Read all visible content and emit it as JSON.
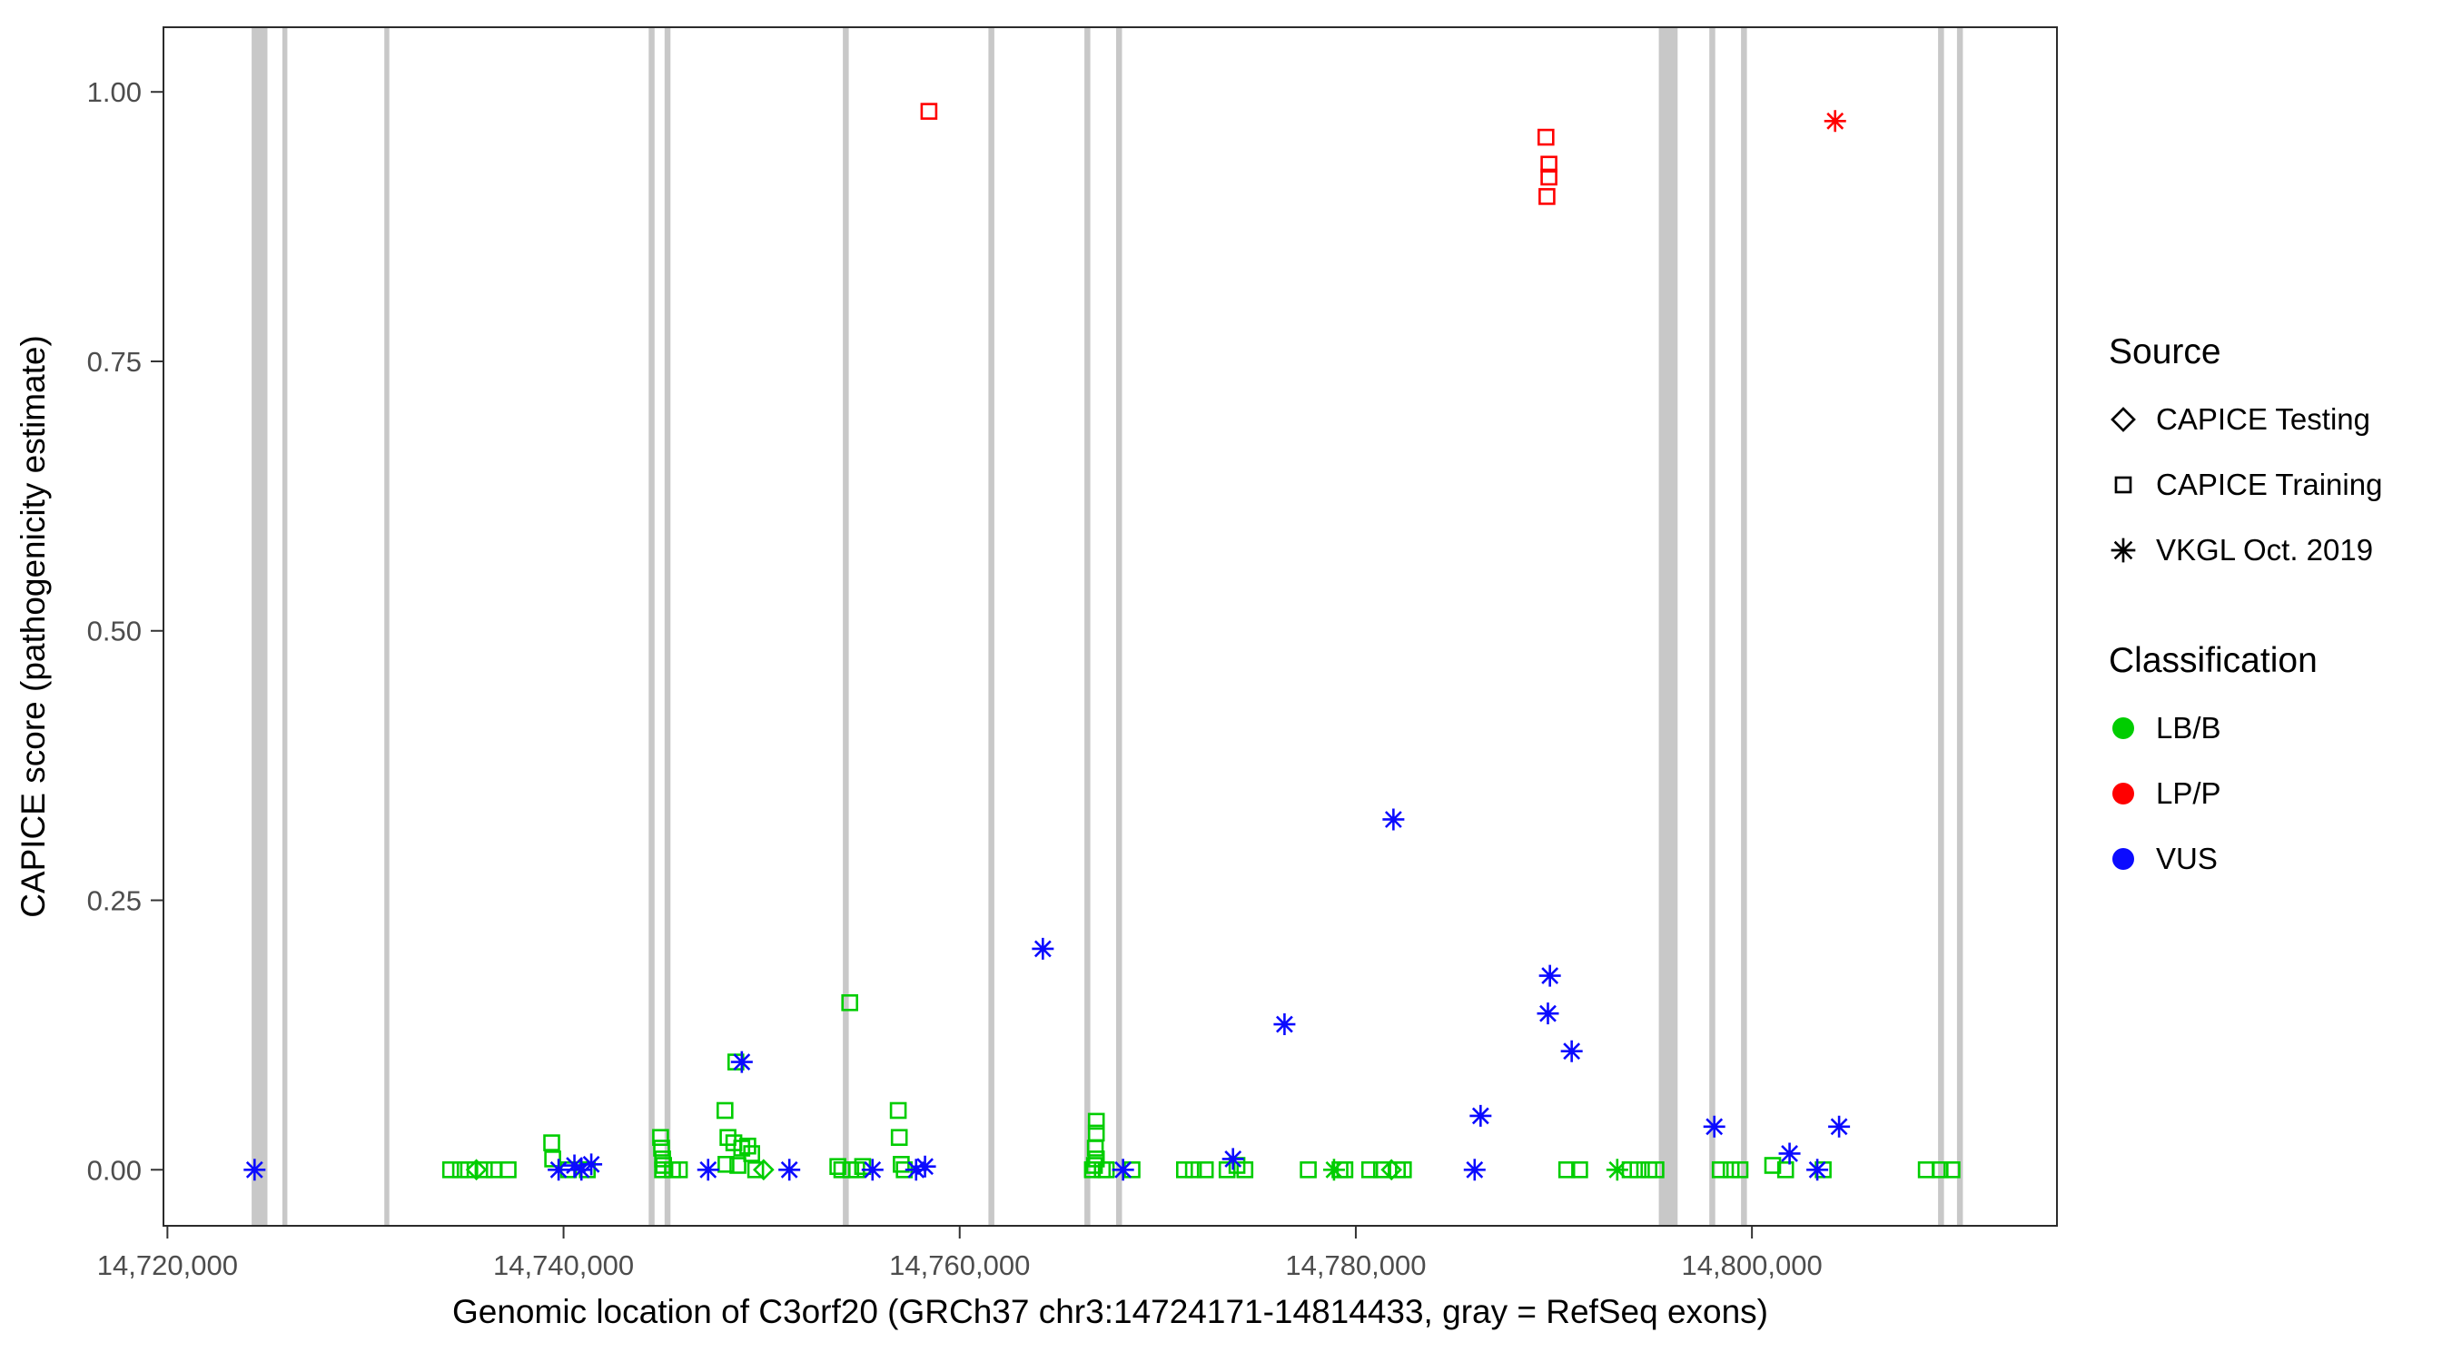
{
  "legend": {
    "source": {
      "title": "Source",
      "items": [
        {
          "label": "CAPICE Testing",
          "shape": "diamond"
        },
        {
          "label": "CAPICE Training",
          "shape": "square"
        },
        {
          "label": "VKGL Oct. 2019",
          "shape": "asterisk"
        }
      ]
    },
    "classification": {
      "title": "Classification",
      "items": [
        {
          "label": "LB/B",
          "color": "#00CD00"
        },
        {
          "label": "LP/P",
          "color": "#FF0000"
        },
        {
          "label": "VUS",
          "color": "#0B0BFF"
        }
      ]
    }
  },
  "chart_data": {
    "type": "scatter",
    "title": "",
    "xlabel": "Genomic location of C3orf20 (GRCh37 chr3:14724171-14814433, gray = RefSeq exons)",
    "ylabel": "CAPICE score (pathogenicity estimate)",
    "xlim": [
      14719800,
      14815400
    ],
    "ylim": [
      -0.052,
      1.06
    ],
    "grid": false,
    "legend_position": "right",
    "x_ticks": [
      {
        "value": 14720000,
        "label": "14,720,000"
      },
      {
        "value": 14740000,
        "label": "14,740,000"
      },
      {
        "value": 14760000,
        "label": "14,760,000"
      },
      {
        "value": 14780000,
        "label": "14,780,000"
      },
      {
        "value": 14800000,
        "label": "14,800,000"
      }
    ],
    "y_ticks": [
      {
        "value": 0.0,
        "label": "0.00"
      },
      {
        "value": 0.25,
        "label": "0.25"
      },
      {
        "value": 0.5,
        "label": "0.50"
      },
      {
        "value": 0.75,
        "label": "0.75"
      },
      {
        "value": 1.0,
        "label": "1.00"
      }
    ],
    "colors": {
      "LB/B": "#00CD00",
      "LP/P": "#FF0000",
      "VUS": "#0B0BFF",
      "exon": "#C8C8C8",
      "axis": "#333333",
      "tick_text": "#4d4d4d"
    },
    "exons": [
      [
        14724250,
        14725050
      ],
      [
        14725800,
        14726050
      ],
      [
        14730950,
        14731200
      ],
      [
        14744300,
        14744600
      ],
      [
        14745100,
        14745400
      ],
      [
        14754100,
        14754400
      ],
      [
        14761450,
        14761750
      ],
      [
        14766300,
        14766600
      ],
      [
        14767900,
        14768200
      ],
      [
        14795300,
        14796250
      ],
      [
        14797850,
        14798150
      ],
      [
        14799450,
        14799750
      ],
      [
        14809400,
        14809700
      ],
      [
        14810350,
        14810650
      ]
    ],
    "points_columns": [
      "position",
      "score",
      "shape",
      "classification"
    ],
    "points": [
      [
        14734300,
        0.0,
        "square",
        "LB/B"
      ],
      [
        14734800,
        0.0,
        "square",
        "LB/B"
      ],
      [
        14735200,
        0.0,
        "square",
        "LB/B"
      ],
      [
        14735600,
        0.0,
        "diamond",
        "LB/B"
      ],
      [
        14736000,
        0.0,
        "square",
        "LB/B"
      ],
      [
        14736500,
        0.0,
        "square",
        "LB/B"
      ],
      [
        14737200,
        0.0,
        "square",
        "LB/B"
      ],
      [
        14739400,
        0.025,
        "square",
        "LB/B"
      ],
      [
        14739450,
        0.01,
        "square",
        "LB/B"
      ],
      [
        14740250,
        0.0,
        "square",
        "LB/B"
      ],
      [
        14741200,
        0.0,
        "square",
        "LB/B"
      ],
      [
        14744900,
        0.03,
        "square",
        "LB/B"
      ],
      [
        14744950,
        0.02,
        "square",
        "LB/B"
      ],
      [
        14745000,
        0.01,
        "square",
        "LB/B"
      ],
      [
        14745050,
        0.004,
        "square",
        "LB/B"
      ],
      [
        14745000,
        0.0,
        "square",
        "LB/B"
      ],
      [
        14745500,
        0.0,
        "square",
        "LB/B"
      ],
      [
        14745850,
        0.0,
        "square",
        "LB/B"
      ],
      [
        14748150,
        0.055,
        "square",
        "LB/B"
      ],
      [
        14748700,
        0.1,
        "square",
        "LB/B"
      ],
      [
        14748300,
        0.03,
        "square",
        "LB/B"
      ],
      [
        14748600,
        0.025,
        "square",
        "LB/B"
      ],
      [
        14749000,
        0.02,
        "square",
        "LB/B"
      ],
      [
        14749300,
        0.022,
        "square",
        "LB/B"
      ],
      [
        14749500,
        0.015,
        "square",
        "LB/B"
      ],
      [
        14748200,
        0.005,
        "square",
        "LB/B"
      ],
      [
        14748800,
        0.004,
        "square",
        "LB/B"
      ],
      [
        14749700,
        0.0,
        "square",
        "LB/B"
      ],
      [
        14750100,
        0.0,
        "diamond",
        "LB/B"
      ],
      [
        14754450,
        0.155,
        "square",
        "LB/B"
      ],
      [
        14753850,
        0.003,
        "square",
        "LB/B"
      ],
      [
        14754050,
        0.0,
        "square",
        "LB/B"
      ],
      [
        14754500,
        0.0,
        "square",
        "LB/B"
      ],
      [
        14754800,
        0.0,
        "square",
        "LB/B"
      ],
      [
        14755100,
        0.003,
        "square",
        "LB/B"
      ],
      [
        14756900,
        0.055,
        "square",
        "LB/B"
      ],
      [
        14756950,
        0.03,
        "square",
        "LB/B"
      ],
      [
        14757050,
        0.005,
        "square",
        "LB/B"
      ],
      [
        14757200,
        0.0,
        "square",
        "LB/B"
      ],
      [
        14766900,
        0.045,
        "square",
        "LB/B"
      ],
      [
        14766900,
        0.034,
        "square",
        "LB/B"
      ],
      [
        14766850,
        0.02,
        "square",
        "LB/B"
      ],
      [
        14766900,
        0.01,
        "square",
        "LB/B"
      ],
      [
        14766800,
        0.004,
        "square",
        "LB/B"
      ],
      [
        14766700,
        0.0,
        "square",
        "LB/B"
      ],
      [
        14767200,
        0.0,
        "square",
        "LB/B"
      ],
      [
        14767400,
        0.0,
        "square",
        "LB/B"
      ],
      [
        14768700,
        0.0,
        "square",
        "LB/B"
      ],
      [
        14771350,
        0.0,
        "square",
        "LB/B"
      ],
      [
        14771800,
        0.0,
        "square",
        "LB/B"
      ],
      [
        14772400,
        0.0,
        "square",
        "LB/B"
      ],
      [
        14773500,
        0.0,
        "square",
        "LB/B"
      ],
      [
        14774000,
        0.004,
        "square",
        "LB/B"
      ],
      [
        14774400,
        0.0,
        "square",
        "LB/B"
      ],
      [
        14777600,
        0.0,
        "square",
        "LB/B"
      ],
      [
        14779200,
        0.0,
        "square",
        "LB/B"
      ],
      [
        14779450,
        0.0,
        "square",
        "LB/B"
      ],
      [
        14780700,
        0.0,
        "square",
        "LB/B"
      ],
      [
        14781300,
        0.0,
        "square",
        "LB/B"
      ],
      [
        14781800,
        0.0,
        "diamond",
        "LB/B"
      ],
      [
        14782100,
        0.0,
        "square",
        "LB/B"
      ],
      [
        14782400,
        0.0,
        "square",
        "LB/B"
      ],
      [
        14790650,
        0.0,
        "square",
        "LB/B"
      ],
      [
        14791300,
        0.0,
        "square",
        "LB/B"
      ],
      [
        14793850,
        0.0,
        "square",
        "LB/B"
      ],
      [
        14794250,
        0.0,
        "square",
        "LB/B"
      ],
      [
        14794800,
        0.0,
        "square",
        "LB/B"
      ],
      [
        14795150,
        0.0,
        "square",
        "LB/B"
      ],
      [
        14798400,
        0.0,
        "square",
        "LB/B"
      ],
      [
        14798950,
        0.0,
        "square",
        "LB/B"
      ],
      [
        14799400,
        0.0,
        "square",
        "LB/B"
      ],
      [
        14801050,
        0.004,
        "square",
        "LB/B"
      ],
      [
        14801700,
        0.0,
        "square",
        "LB/B"
      ],
      [
        14803600,
        0.0,
        "square",
        "LB/B"
      ],
      [
        14808800,
        0.0,
        "square",
        "LB/B"
      ],
      [
        14809500,
        0.0,
        "square",
        "LB/B"
      ],
      [
        14810100,
        0.0,
        "square",
        "LB/B"
      ],
      [
        14778900,
        0.0,
        "asterisk",
        "LB/B"
      ],
      [
        14793200,
        0.0,
        "asterisk",
        "LB/B"
      ],
      [
        14724400,
        0.0,
        "asterisk",
        "VUS"
      ],
      [
        14739750,
        0.0,
        "asterisk",
        "VUS"
      ],
      [
        14740550,
        0.004,
        "asterisk",
        "VUS"
      ],
      [
        14740900,
        0.0,
        "asterisk",
        "VUS"
      ],
      [
        14741400,
        0.005,
        "asterisk",
        "VUS"
      ],
      [
        14747300,
        0.0,
        "asterisk",
        "VUS"
      ],
      [
        14749000,
        0.1,
        "asterisk",
        "VUS"
      ],
      [
        14751400,
        0.0,
        "asterisk",
        "VUS"
      ],
      [
        14755600,
        0.0,
        "asterisk",
        "VUS"
      ],
      [
        14757800,
        0.0,
        "asterisk",
        "VUS"
      ],
      [
        14758250,
        0.003,
        "asterisk",
        "VUS"
      ],
      [
        14764200,
        0.205,
        "asterisk",
        "VUS"
      ],
      [
        14768250,
        0.0,
        "asterisk",
        "VUS"
      ],
      [
        14773800,
        0.01,
        "asterisk",
        "VUS"
      ],
      [
        14776400,
        0.135,
        "asterisk",
        "VUS"
      ],
      [
        14781900,
        0.325,
        "asterisk",
        "VUS"
      ],
      [
        14786000,
        0.0,
        "asterisk",
        "VUS"
      ],
      [
        14786300,
        0.05,
        "asterisk",
        "VUS"
      ],
      [
        14789800,
        0.18,
        "asterisk",
        "VUS"
      ],
      [
        14789700,
        0.145,
        "asterisk",
        "VUS"
      ],
      [
        14790900,
        0.11,
        "asterisk",
        "VUS"
      ],
      [
        14798100,
        0.04,
        "asterisk",
        "VUS"
      ],
      [
        14801900,
        0.015,
        "asterisk",
        "VUS"
      ],
      [
        14803300,
        0.0,
        "asterisk",
        "VUS"
      ],
      [
        14804400,
        0.04,
        "asterisk",
        "VUS"
      ],
      [
        14758450,
        0.982,
        "square",
        "LP/P"
      ],
      [
        14789600,
        0.958,
        "square",
        "LP/P"
      ],
      [
        14789750,
        0.933,
        "square",
        "LP/P"
      ],
      [
        14789750,
        0.921,
        "square",
        "LP/P"
      ],
      [
        14789650,
        0.903,
        "square",
        "LP/P"
      ],
      [
        14804200,
        0.973,
        "asterisk",
        "LP/P"
      ]
    ]
  }
}
